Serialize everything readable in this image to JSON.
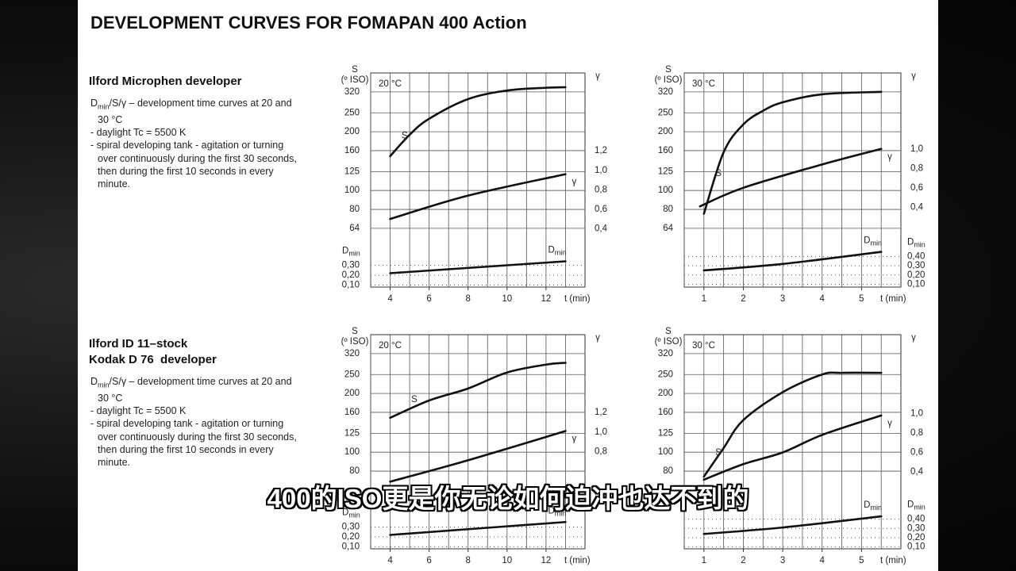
{
  "header": {
    "title": "DEVELOPMENT CURVES FOR FOMAPAN 400 Action"
  },
  "sections": [
    {
      "heading": [
        "Ilford Microphen developer"
      ],
      "notes": [
        [
          "D",
          "min",
          "/S/γ – development time curves at 20 and 30 °C"
        ],
        "- daylight Tc = 5500 K",
        "- spiral developing tank - agitation or turning over continuously during the first 30 seconds, then during the first 10 seconds in every minute."
      ]
    },
    {
      "heading": [
        "Ilford ID 11–stock",
        "Kodak D 76  developer"
      ],
      "notes": [
        [
          "D",
          "min",
          "/S/γ – development time curves at 20 and 30 °C"
        ],
        "- daylight Tc = 5500 K",
        "- spiral developing tank - agitation or turning over continuously during the first 30 seconds, then during the first 10 seconds in every minute."
      ]
    }
  ],
  "chart_data": [
    {
      "type": "line",
      "title": "20 °C",
      "xlabel": "t (min)",
      "ylabel": "S",
      "ylabel_unit": "(º ISO)",
      "y2label": "γ",
      "y3label": [
        "D",
        "min"
      ],
      "y3side": "left",
      "yscale": "log",
      "color": "#111",
      "xlim": [
        3,
        14
      ],
      "xticks": [
        4,
        6,
        8,
        10,
        12
      ],
      "ylim": [
        32,
        400
      ],
      "yticks": [
        64,
        80,
        100,
        125,
        160,
        200,
        250,
        320
      ],
      "y2lim": [
        -0.2,
        2.0
      ],
      "y2ticks": [
        {
          "value": 0.4,
          "label": "0,4"
        },
        {
          "value": 0.6,
          "label": "0,6"
        },
        {
          "value": 0.8,
          "label": "0,8"
        },
        {
          "value": 1.0,
          "label": "1,0"
        },
        {
          "value": 1.2,
          "label": "1,2"
        }
      ],
      "y3lim": [
        0.08,
        2.24
      ],
      "y3ticks": [
        {
          "value": 0.1,
          "label": "0,10"
        },
        {
          "value": 0.2,
          "label": "0,20"
        },
        {
          "value": 0.3,
          "label": "0,30"
        }
      ],
      "series": [
        {
          "name": "S",
          "x": [
            4,
            5,
            6,
            8,
            10,
            12,
            13
          ],
          "values": [
            150,
            193,
            233,
            294,
            325,
            336,
            338
          ]
        },
        {
          "name": "γ",
          "axis": "y2",
          "x": [
            4,
            8,
            13
          ],
          "values": [
            0.5,
            0.74,
            0.96
          ]
        },
        {
          "name": [
            "D",
            "min"
          ],
          "axis": "y3",
          "x": [
            4,
            13
          ],
          "values": [
            0.22,
            0.34
          ]
        }
      ]
    },
    {
      "type": "line",
      "title": "30 °C",
      "xlabel": "t (min)",
      "ylabel": "S",
      "ylabel_unit": "(º ISO)",
      "y2label": "γ",
      "y3label": [
        "D",
        "min"
      ],
      "y3side": "right",
      "yscale": "log",
      "color": "#111",
      "xlim": [
        0.5,
        6
      ],
      "xticks": [
        1,
        2,
        3,
        4,
        5
      ],
      "ylim": [
        32,
        400
      ],
      "yticks": [
        64,
        80,
        100,
        125,
        160,
        200,
        250,
        320
      ],
      "y2lim": [
        -0.42,
        1.78
      ],
      "y2ticks": [
        {
          "value": 0.4,
          "label": "0,4"
        },
        {
          "value": 0.6,
          "label": "0,6"
        },
        {
          "value": 0.8,
          "label": "0,8"
        },
        {
          "value": 1.0,
          "label": "1,0"
        }
      ],
      "y3lim": [
        0.07,
        2.38
      ],
      "y3ticks": [
        {
          "value": 0.1,
          "label": "0,10"
        },
        {
          "value": 0.2,
          "label": "0,20"
        },
        {
          "value": 0.3,
          "label": "0,30"
        },
        {
          "value": 0.4,
          "label": "0,40"
        }
      ],
      "series": [
        {
          "name": "S",
          "x": [
            1,
            1.5,
            2,
            2.5,
            3,
            4,
            5.5
          ],
          "values": [
            76,
            157,
            218,
            256,
            283,
            311,
            320
          ]
        },
        {
          "name": "γ",
          "axis": "y2",
          "x": [
            0.9,
            2,
            4,
            5.5
          ],
          "values": [
            0.41,
            0.6,
            0.84,
            1.0
          ]
        },
        {
          "name": [
            "D",
            "min"
          ],
          "axis": "y3",
          "x": [
            1,
            3,
            5.5
          ],
          "values": [
            0.25,
            0.32,
            0.45
          ]
        }
      ]
    },
    {
      "type": "line",
      "title": "20 °C",
      "xlabel": "t (min)",
      "ylabel": "S",
      "ylabel_unit": "(º ISO)",
      "y2label": "γ",
      "y3label": [
        "D",
        "min"
      ],
      "y3side": "left",
      "yscale": "log",
      "color": "#111",
      "xlim": [
        3,
        14
      ],
      "xticks": [
        4,
        6,
        8,
        10,
        12
      ],
      "ylim": [
        32,
        400
      ],
      "yticks": [
        80,
        100,
        125,
        160,
        200,
        250,
        320
      ],
      "y2lim": [
        -0.2,
        2.0
      ],
      "y2ticks": [
        {
          "value": 0.8,
          "label": "0,8"
        },
        {
          "value": 1.0,
          "label": "1,0"
        },
        {
          "value": 1.2,
          "label": "1,2"
        }
      ],
      "y3lim": [
        0.08,
        2.24
      ],
      "y3ticks": [
        {
          "value": 0.1,
          "label": "0,10"
        },
        {
          "value": 0.2,
          "label": "0,20"
        },
        {
          "value": 0.3,
          "label": "0,30"
        }
      ],
      "series": [
        {
          "name": "S",
          "x": [
            4,
            6,
            8,
            10,
            12,
            13
          ],
          "values": [
            150,
            184,
            212,
            256,
            281,
            287
          ]
        },
        {
          "name": "γ",
          "axis": "y2",
          "x": [
            4,
            8,
            13
          ],
          "values": [
            0.49,
            0.71,
            1.01
          ]
        },
        {
          "name": [
            "D",
            "min"
          ],
          "axis": "y3",
          "x": [
            4,
            13
          ],
          "values": [
            0.22,
            0.35
          ]
        }
      ]
    },
    {
      "type": "line",
      "title": "30 °C",
      "xlabel": "t (min)",
      "ylabel": "S",
      "ylabel_unit": "(º ISO)",
      "y2label": "γ",
      "y3label": [
        "D",
        "min"
      ],
      "y3side": "right",
      "yscale": "log",
      "color": "#111",
      "xlim": [
        0.5,
        6
      ],
      "xticks": [
        1,
        2,
        3,
        4,
        5
      ],
      "ylim": [
        32,
        400
      ],
      "yticks": [
        80,
        100,
        125,
        160,
        200,
        250,
        320
      ],
      "y2lim": [
        -0.39,
        1.81
      ],
      "y2ticks": [
        {
          "value": 0.4,
          "label": "0,4"
        },
        {
          "value": 0.6,
          "label": "0,6"
        },
        {
          "value": 0.8,
          "label": "0,8"
        },
        {
          "value": 1.0,
          "label": "1,0"
        }
      ],
      "y3lim": [
        0.08,
        2.39
      ],
      "y3ticks": [
        {
          "value": 0.1,
          "label": "0,10"
        },
        {
          "value": 0.2,
          "label": "0,20"
        },
        {
          "value": 0.3,
          "label": "0,30"
        },
        {
          "value": 0.4,
          "label": "0,40"
        }
      ],
      "series": [
        {
          "name": "S",
          "x": [
            1,
            1.5,
            2,
            3,
            4,
            4.5,
            5.5
          ],
          "values": [
            75,
            105,
            146,
            203,
            250,
            255,
            255
          ]
        },
        {
          "name": "γ",
          "axis": "y2",
          "x": [
            1,
            2,
            3,
            4,
            5.5
          ],
          "values": [
            0.32,
            0.48,
            0.6,
            0.78,
            0.98
          ]
        },
        {
          "name": [
            "D",
            "min"
          ],
          "axis": "y3",
          "x": [
            1,
            3,
            5.5
          ],
          "values": [
            0.24,
            0.31,
            0.43
          ]
        }
      ]
    }
  ],
  "subtitle": "400的ISO更是你无论如何迫冲也达不到的"
}
